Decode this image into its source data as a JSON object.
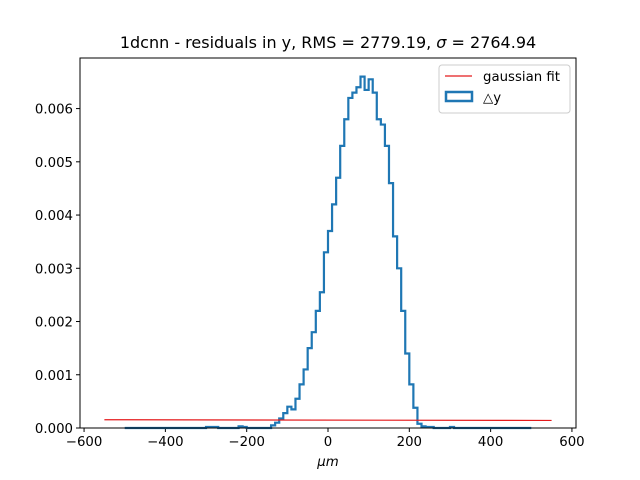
{
  "chart_data": {
    "type": "step-histogram",
    "title": "1dcnn - residuals in y, RMS = 2779.19, σ = 2764.94",
    "xlabel": "μm",
    "ylabel": "",
    "xlim": [
      -610,
      610
    ],
    "ylim": [
      0,
      0.00695
    ],
    "xticks": [
      -600,
      -400,
      -200,
      0,
      200,
      400,
      600
    ],
    "xtick_labels": [
      "−600",
      "−400",
      "−200",
      "0",
      "200",
      "400",
      "600"
    ],
    "yticks": [
      0,
      0.001,
      0.002,
      0.003,
      0.004,
      0.005,
      0.006
    ],
    "ytick_labels": [
      "0.000",
      "0.001",
      "0.002",
      "0.003",
      "0.004",
      "0.005",
      "0.006"
    ],
    "grid": false,
    "legend_position": "upper right",
    "colors": {
      "hist": "#1f77b4",
      "fit": "#e41a1c"
    },
    "series": [
      {
        "name": "gaussian fit",
        "kind": "line",
        "x": [
          -550,
          550
        ],
        "y": [
          0.000155,
          0.000142
        ]
      },
      {
        "name": "△y",
        "kind": "step",
        "bin_width": 10,
        "bin_edges_start": -500,
        "values": [
          0,
          0,
          0,
          0,
          0,
          0,
          0,
          0,
          0,
          0,
          0,
          0,
          0,
          0,
          0,
          0,
          0,
          0,
          0,
          0,
          2e-05,
          2e-05,
          2e-05,
          0,
          0,
          0,
          0,
          0,
          3e-05,
          2e-05,
          0,
          0,
          0,
          0,
          0,
          0,
          5e-05,
          0.0001,
          0.00018,
          0.00028,
          0.0004,
          0.00035,
          0.00055,
          0.00082,
          0.0011,
          0.0015,
          0.0018,
          0.0022,
          0.00255,
          0.0033,
          0.0037,
          0.0042,
          0.0047,
          0.0053,
          0.0058,
          0.0062,
          0.0063,
          0.0064,
          0.0066,
          0.00635,
          0.00655,
          0.0063,
          0.0058,
          0.0057,
          0.0053,
          0.0046,
          0.0036,
          0.003,
          0.0022,
          0.0014,
          0.00082,
          0.00038,
          8e-05,
          3e-05,
          2e-05,
          2e-05,
          0,
          0,
          0,
          0,
          2e-05,
          0,
          0,
          0,
          0,
          0,
          0,
          0,
          0,
          0,
          0,
          0,
          0,
          0,
          0,
          0,
          0,
          0,
          0,
          0
        ]
      }
    ]
  }
}
